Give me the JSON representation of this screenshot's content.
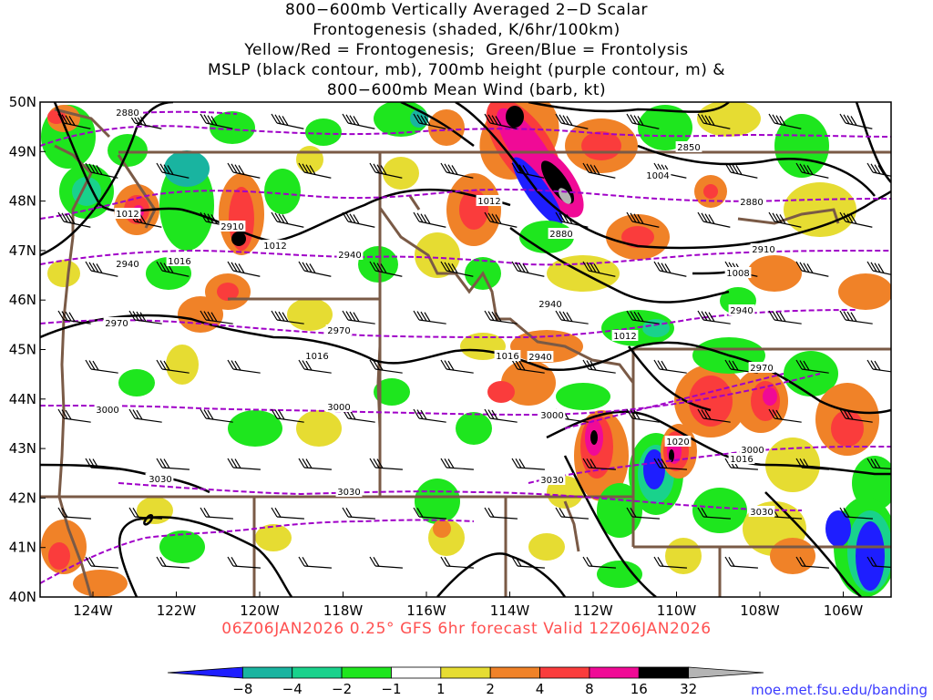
{
  "title_lines": [
    "800−600mb Vertically Averaged 2−D Scalar",
    "Frontogenesis (shaded, K/6hr/100km)",
    "Yellow/Red = Frontogenesis;  Green/Blue = Frontolysis",
    "MSLP (black contour, mb), 700mb height (purple contour, m) &",
    "800−600mb Mean Wind (barb, kt)"
  ],
  "footer": "06Z06JAN2026 0.25° GFS 6hr forecast Valid 12Z06JAN2026",
  "credit": "moe.met.fsu.edu/banding",
  "lat_labels": [
    "50N",
    "49N",
    "48N",
    "47N",
    "46N",
    "45N",
    "44N",
    "43N",
    "42N",
    "41N",
    "40N"
  ],
  "lon_labels": [
    "124W",
    "122W",
    "120W",
    "118W",
    "116W",
    "114W",
    "112W",
    "110W",
    "108W",
    "106W"
  ],
  "colorbar": {
    "tick_labels": [
      "−8",
      "−4",
      "−2",
      "−1",
      "1",
      "2",
      "4",
      "8",
      "16",
      "32"
    ],
    "colors": [
      "#1e1eff",
      "#19b4a0",
      "#19d28c",
      "#1ee61e",
      "#ffffff",
      "#e6dc32",
      "#f08228",
      "#fa3c3c",
      "#f00a96",
      "#000000",
      "#b4b4b4"
    ]
  },
  "mslp_labels": [
    "1004",
    "1008",
    "1012",
    "1012",
    "1012",
    "1012",
    "1016",
    "1016",
    "1016",
    "1016",
    "1020",
    "1020"
  ],
  "height_labels": [
    "2850",
    "2880",
    "2880",
    "2880",
    "2910",
    "2910",
    "2940",
    "2940",
    "2940",
    "2940",
    "2940",
    "2970",
    "2970",
    "2970",
    "3000",
    "3000",
    "3000",
    "3000",
    "3030",
    "3030",
    "3030",
    "3030"
  ],
  "colors": {
    "mslp": "#000000",
    "height": "#a000c8",
    "borders": "#7a5a46",
    "footer": "#ff5050",
    "credit": "#3a3aff"
  }
}
